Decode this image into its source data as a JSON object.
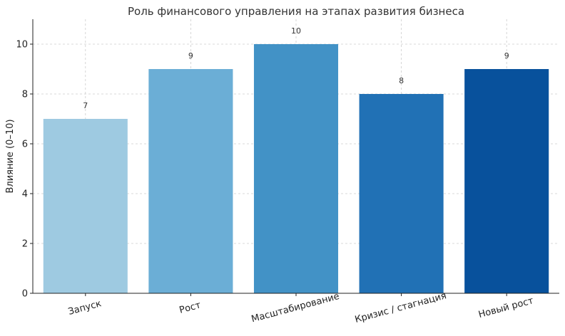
{
  "chart_data": {
    "type": "bar",
    "title": "Роль финансового управления на этапах развития бизнеса",
    "xlabel": "",
    "ylabel": "Влияние (0–10)",
    "categories": [
      "Запуск",
      "Рост",
      "Масштабирование",
      "Кризис / стагнация",
      "Новый рост"
    ],
    "values": [
      7,
      9,
      10,
      8,
      9
    ],
    "colors": [
      "#9ecae1",
      "#6baed6",
      "#4292c6",
      "#2171b5",
      "#08519c"
    ],
    "ylim": [
      0,
      11
    ],
    "yticks": [
      0,
      2,
      4,
      6,
      8,
      10
    ],
    "grid": true,
    "legend": "none"
  }
}
